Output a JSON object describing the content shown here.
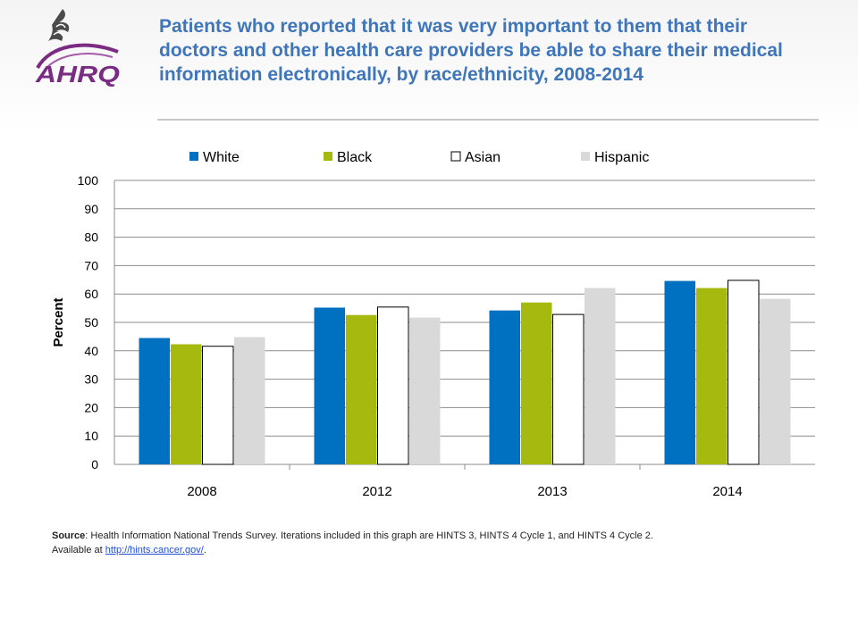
{
  "header": {
    "title": "Patients who reported that it was very important to them that their doctors and other health care providers be able to share their medical information electronically, by race/ethnicity, 2008-2014",
    "logo_text": "AHRQ",
    "logo_icon": "hhs-eagle-icon"
  },
  "footnote": {
    "source_label": "Source",
    "source_text": ": Health Information National Trends Survey. Iterations included in this graph are HINTS  3, HINTS  4 Cycle 1, and HINTS  4 Cycle 2.",
    "available_text": "Available at  ",
    "link_text": "http://hints.cancer.gov/",
    "trailing": "."
  },
  "chart_data": {
    "type": "bar",
    "title": "",
    "xlabel": "",
    "ylabel": "Percent",
    "ylim": [
      0,
      100
    ],
    "yticks": [
      0,
      10,
      20,
      30,
      40,
      50,
      60,
      70,
      80,
      90,
      100
    ],
    "grid": true,
    "legend_position": "top",
    "categories": [
      "2008",
      "2012",
      "2013",
      "2014"
    ],
    "series": [
      {
        "name": "White",
        "color": "#0070c0",
        "values": [
          44.5,
          55.2,
          54.2,
          64.6
        ]
      },
      {
        "name": "Black",
        "color": "#a5b90f",
        "values": [
          42.3,
          52.6,
          57.0,
          62.1
        ]
      },
      {
        "name": "Asian",
        "color": "#ffffff",
        "values": [
          41.6,
          55.4,
          52.8,
          64.8
        ]
      },
      {
        "name": "Hispanic",
        "color": "#d9d9d9",
        "values": [
          44.8,
          51.7,
          62.1,
          58.3
        ]
      }
    ]
  }
}
